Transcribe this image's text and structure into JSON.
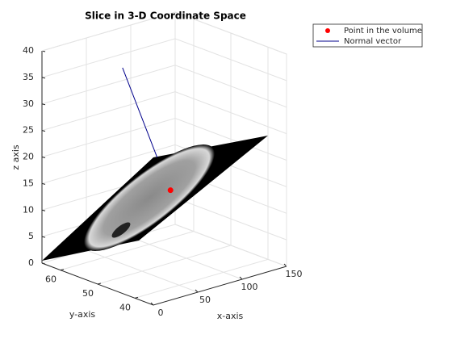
{
  "chart_data": {
    "type": "scatter3",
    "title": "Slice in 3-D Coordinate Space",
    "xlabel": "x-axis",
    "ylabel": "y-axis",
    "zlabel": "z axis",
    "xlim": [
      0,
      150
    ],
    "ylim": [
      35,
      65
    ],
    "zlim": [
      0,
      40
    ],
    "xticks": [
      0,
      50,
      100,
      150
    ],
    "yticks": [
      40,
      50,
      60
    ],
    "zticks": [
      0,
      5,
      10,
      15,
      20,
      25,
      30,
      35,
      40
    ],
    "grid": true,
    "legend": "outside-top-right",
    "series": [
      {
        "name": "Point in the volume",
        "color": "#ff0000",
        "mode": "marker",
        "x": [
          82
        ],
        "y": [
          50
        ],
        "z": [
          13.7
        ]
      },
      {
        "name": "Normal vector",
        "color": "#00008b",
        "mode": "line",
        "x": [
          67,
          28
        ],
        "y": [
          50,
          50
        ],
        "z": [
          20.6,
          39.4
        ]
      }
    ]
  }
}
